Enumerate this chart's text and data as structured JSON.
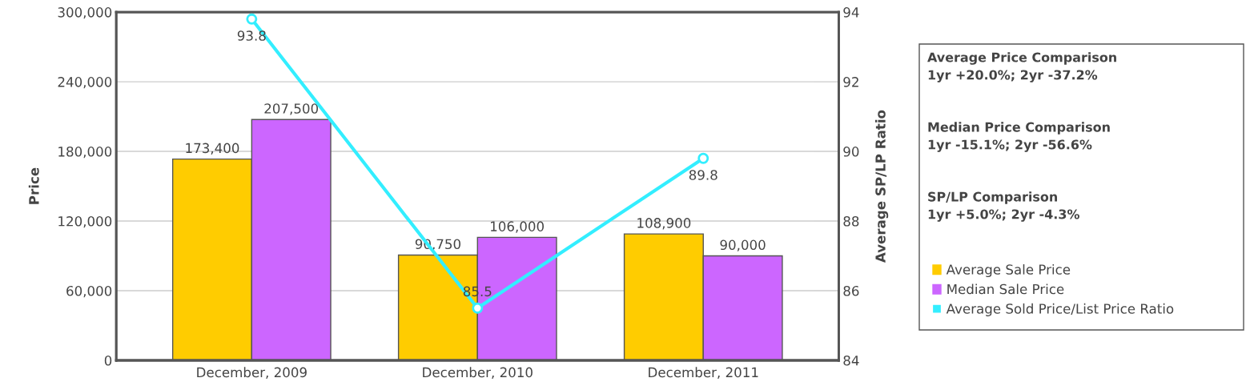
{
  "chart_data": {
    "type": "bar",
    "ylabel": "Price",
    "y2label": "Average SP/LP Ratio",
    "categories": [
      "December, 2009",
      "December, 2010",
      "December, 2011"
    ],
    "series": [
      {
        "name": "Average Sale Price",
        "color": "#ffcc00",
        "values": [
          173400,
          90750,
          108900
        ]
      },
      {
        "name": "Median Sale Price",
        "color": "#cc66ff",
        "values": [
          207500,
          106000,
          90000
        ]
      },
      {
        "name": "Average Sold Price/List Price Ratio",
        "type": "line",
        "axis": "y2",
        "color": "#33eeff",
        "marker": "circle",
        "values": [
          93.8,
          85.5,
          89.8
        ]
      }
    ],
    "ylim": [
      0,
      300000
    ],
    "yticks": [
      {
        "value": 0,
        "label": "0"
      },
      {
        "value": 60000,
        "label": "60,000"
      },
      {
        "value": 120000,
        "label": "120,000"
      },
      {
        "value": 180000,
        "label": "180,000"
      },
      {
        "value": 240000,
        "label": "240,000"
      },
      {
        "value": 300000,
        "label": "300,000"
      }
    ],
    "y2lim": [
      84,
      94
    ],
    "y2ticks": [
      84,
      86,
      88,
      90,
      92,
      94
    ],
    "value_labels": [
      [
        "173,400",
        "90,750",
        "108,900"
      ],
      [
        "207,500",
        "106,000",
        "90,000"
      ],
      [
        "93.8",
        "85.5",
        "89.8"
      ]
    ],
    "annotations": [
      "Average Price Comparison",
      "1yr +20.0%; 2yr -37.2%",
      "Median Price Comparison",
      "1yr -15.1%; 2yr -56.6%",
      "SP/LP Comparison",
      "1yr +5.0%; 2yr -4.3%"
    ],
    "grid": "y",
    "legend": "right"
  }
}
